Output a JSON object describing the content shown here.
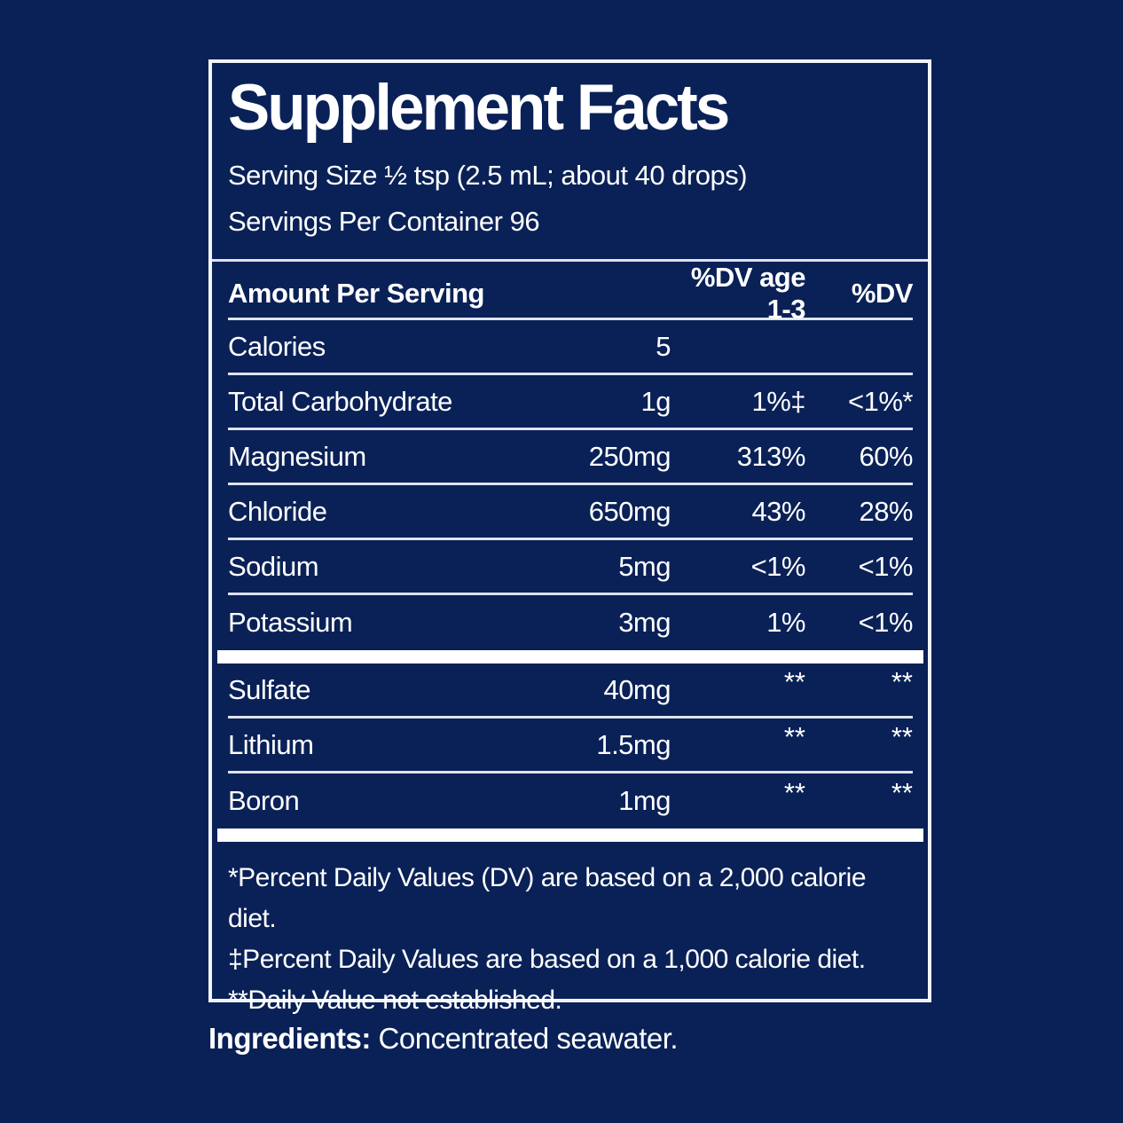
{
  "colors": {
    "background": "#0a2157",
    "text": "#ffffff",
    "border": "#f2f4f9",
    "rule": "#dde3ef"
  },
  "label": {
    "title": "Supplement Facts",
    "serving_size": "Serving Size ½ tsp (2.5 mL; about 40 drops)",
    "servings_per_container": "Servings Per Container 96",
    "columns": [
      "Amount Per Serving",
      "%DV age 1-3",
      "%DV"
    ],
    "main_rows": [
      {
        "name": "Calories",
        "amount": "5",
        "dv1": "",
        "dv2": ""
      },
      {
        "name": "Total Carbohydrate",
        "amount": "1g",
        "dv1": "1%‡",
        "dv2": "<1%*"
      },
      {
        "name": "Magnesium",
        "amount": "250mg",
        "dv1": "313%",
        "dv2": "60%"
      },
      {
        "name": "Chloride",
        "amount": "650mg",
        "dv1": "43%",
        "dv2": "28%"
      },
      {
        "name": "Sodium",
        "amount": "5mg",
        "dv1": "<1%",
        "dv2": "<1%"
      },
      {
        "name": "Potassium",
        "amount": "3mg",
        "dv1": "1%",
        "dv2": "<1%"
      }
    ],
    "no_dv_rows": [
      {
        "name": "Sulfate",
        "amount": "40mg",
        "dv1": "**",
        "dv2": "**"
      },
      {
        "name": "Lithium",
        "amount": "1.5mg",
        "dv1": "**",
        "dv2": "**"
      },
      {
        "name": "Boron",
        "amount": "1mg",
        "dv1": "**",
        "dv2": "**"
      }
    ],
    "footnotes": [
      "*Percent Daily Values (DV) are based on a 2,000 calorie diet.",
      "‡Percent Daily Values are based on a 1,000 calorie diet.",
      "**Daily Value not established."
    ],
    "ingredients_label": "Ingredients:",
    "ingredients_text": "Concentrated seawater."
  }
}
